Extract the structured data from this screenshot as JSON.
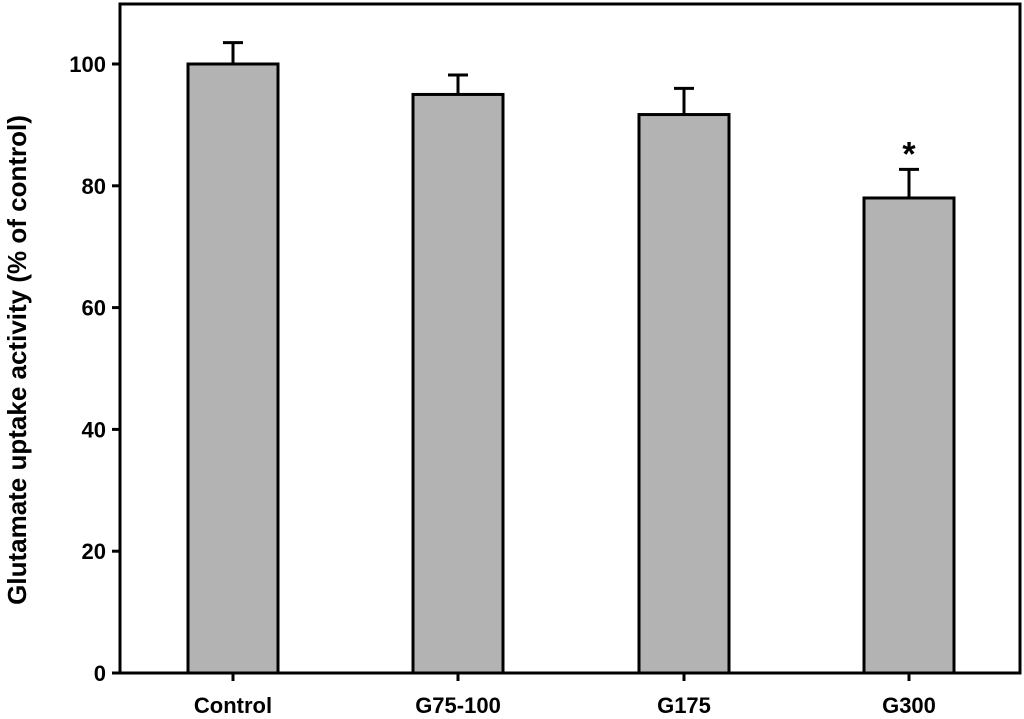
{
  "chart_data": {
    "type": "bar",
    "title": "",
    "xlabel": "",
    "ylabel": "Glutamate uptake activity (% of control)",
    "categories": [
      "Control",
      "G75-100",
      "G175",
      "G300"
    ],
    "values": [
      100,
      95,
      91.7,
      78
    ],
    "errors": [
      3.5,
      3.2,
      4.3,
      4.7
    ],
    "annotations": [
      {
        "category": "G300",
        "text": "*"
      }
    ],
    "ylim": [
      0,
      110
    ],
    "yticks": [
      0,
      20,
      40,
      60,
      80,
      100
    ],
    "grid": false,
    "legend": "none",
    "bar_color": "#b3b3b3",
    "edge_color": "#000000"
  }
}
